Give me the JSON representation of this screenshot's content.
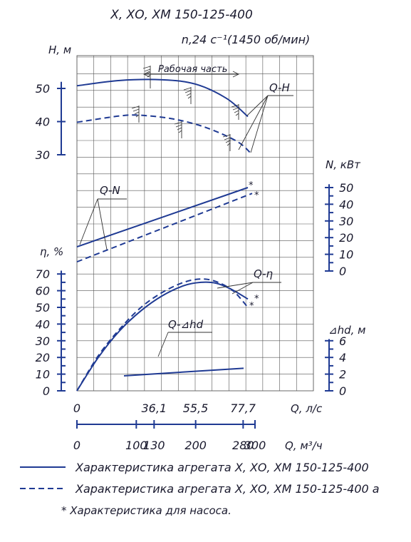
{
  "chart_data": {
    "type": "line",
    "title": "Х, ХО, ХМ 150-125-400",
    "subtitle": "n,24 с⁻¹(1450 об/мин)",
    "axes": {
      "H": {
        "label": "Н, м",
        "ticks": [
          "50",
          "40",
          "30"
        ]
      },
      "N": {
        "label": "N, кВт",
        "ticks": [
          "50",
          "40",
          "30",
          "20",
          "10",
          "0"
        ]
      },
      "eta": {
        "label": "η, %",
        "ticks": [
          "70",
          "60",
          "50",
          "40",
          "30",
          "20",
          "10",
          "0"
        ]
      },
      "hd": {
        "label": "⊿hd, м",
        "ticks": [
          "6",
          "4",
          "2",
          "0"
        ]
      },
      "Q_ls": {
        "label": "Q, л/с",
        "ticks": [
          "0",
          "36,1",
          "55,5",
          "77,7"
        ]
      },
      "Q_m3h": {
        "label": "Q, м³/ч",
        "ticks": [
          "0",
          "100",
          "130",
          "200",
          "280",
          "300"
        ]
      }
    },
    "labels": {
      "QH": "Q-H",
      "QN": "Q-N",
      "Qeta": "Q-η",
      "Qhd": "Q-⊿hd",
      "work": "Рабочая часть"
    },
    "star": "*",
    "series": [
      {
        "curve": "Q-H",
        "style": "solid",
        "x": [
          0,
          20,
          40,
          55.5,
          70,
          80
        ],
        "y": [
          50.8,
          52.4,
          52.6,
          51.3,
          47.0,
          41.5
        ]
      },
      {
        "curve": "Q-H",
        "style": "dashed",
        "x": [
          0,
          20,
          30,
          45,
          60,
          75,
          82
        ],
        "y": [
          39.8,
          41.7,
          41.9,
          40.8,
          38.3,
          34.0,
          30.0
        ]
      },
      {
        "curve": "Q-N",
        "style": "solid",
        "x": [
          0,
          80
        ],
        "y": [
          14.5,
          50.0
        ]
      },
      {
        "curve": "Q-N",
        "style": "dashed",
        "x": [
          0,
          82
        ],
        "y": [
          5.5,
          46.5
        ]
      },
      {
        "curve": "Q-η",
        "style": "solid",
        "x": [
          0,
          10,
          20,
          30,
          40,
          50,
          58,
          65,
          72,
          80
        ],
        "y": [
          0,
          20,
          36,
          48,
          57,
          63,
          65,
          64.5,
          61,
          55
        ]
      },
      {
        "curve": "Q-η",
        "style": "dashed",
        "x": [
          0,
          10,
          20,
          30,
          40,
          50,
          58,
          65,
          73,
          80
        ],
        "y": [
          0,
          21,
          37,
          50,
          59,
          65,
          67,
          65.5,
          60,
          50
        ]
      },
      {
        "curve": "Q-⊿hd",
        "style": "solid",
        "x": [
          22,
          78
        ],
        "y": [
          1.8,
          2.7
        ]
      }
    ],
    "grid": true
  },
  "legend": {
    "solid": "Характеристика агрегата Х, ХО, ХМ 150-125-400",
    "dashed": "Характеристика агрегата Х, ХО, ХМ 150-125-400 а",
    "note": "* Характеристика для насоса."
  }
}
